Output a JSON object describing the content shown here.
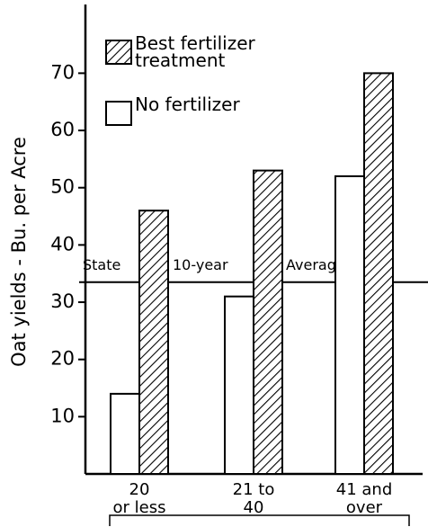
{
  "chart_data": {
    "type": "bar",
    "y_axis_label": "Oat yields - Bu. per Acre",
    "categories": [
      [
        "20",
        "or less"
      ],
      [
        "21 to",
        "40"
      ],
      [
        "41 and",
        "over"
      ]
    ],
    "series": [
      {
        "name": "No fertilizer",
        "color": "#ffffff",
        "values": [
          14,
          31,
          52
        ]
      },
      {
        "name": "Best fertilizer treatment",
        "color": "#000000",
        "hatch": true,
        "values": [
          46,
          53,
          70
        ]
      }
    ],
    "reference_line": {
      "value": 33.5,
      "labels": [
        "State",
        "10-year",
        "Average"
      ]
    },
    "ylim": [
      0,
      82
    ],
    "yticks": [
      10,
      20,
      30,
      40,
      50,
      60,
      70
    ]
  }
}
